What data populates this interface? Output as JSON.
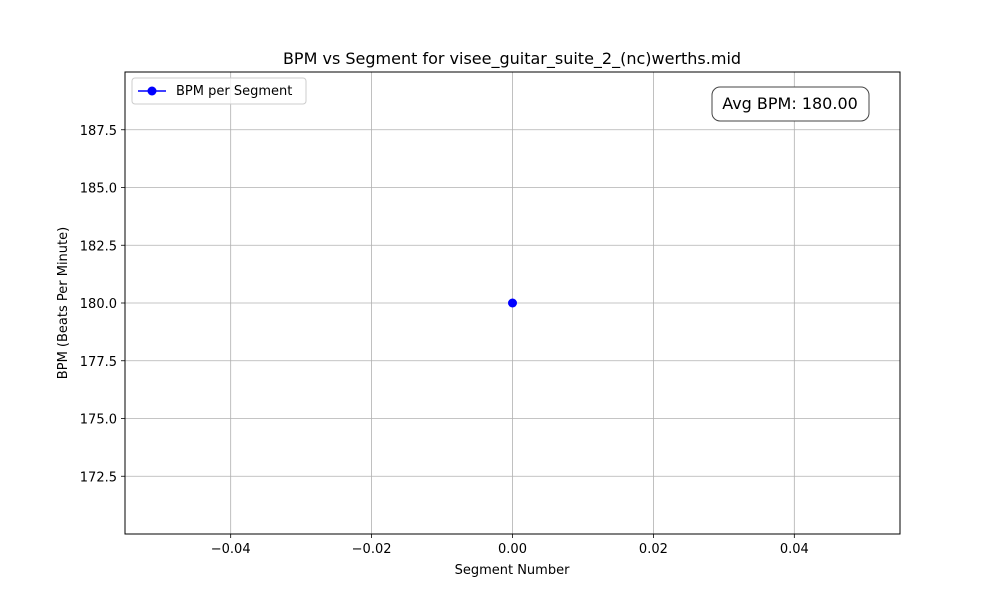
{
  "chart_data": {
    "type": "line",
    "title": "BPM vs Segment for visee_guitar_suite_2_(nc)werths.mid",
    "xlabel": "Segment Number",
    "ylabel": "BPM (Beats Per Minute)",
    "xlim": [
      -0.055,
      0.055
    ],
    "ylim": [
      170.0,
      190.0
    ],
    "xticks": [
      -0.04,
      -0.02,
      0.0,
      0.02,
      0.04
    ],
    "xtick_labels": [
      "−0.04",
      "−0.02",
      "0.00",
      "0.02",
      "0.04"
    ],
    "yticks": [
      172.5,
      175.0,
      177.5,
      180.0,
      182.5,
      185.0,
      187.5
    ],
    "ytick_labels": [
      "172.5",
      "175.0",
      "177.5",
      "180.0",
      "182.5",
      "185.0",
      "187.5"
    ],
    "grid": true,
    "legend_position": "top-left",
    "series": [
      {
        "name": "BPM per Segment",
        "color": "#0000ff",
        "marker": "circle",
        "x": [
          0
        ],
        "y": [
          180.0
        ]
      }
    ],
    "annotation": {
      "text": "Avg BPM: 180.00",
      "position": "top-right"
    }
  }
}
